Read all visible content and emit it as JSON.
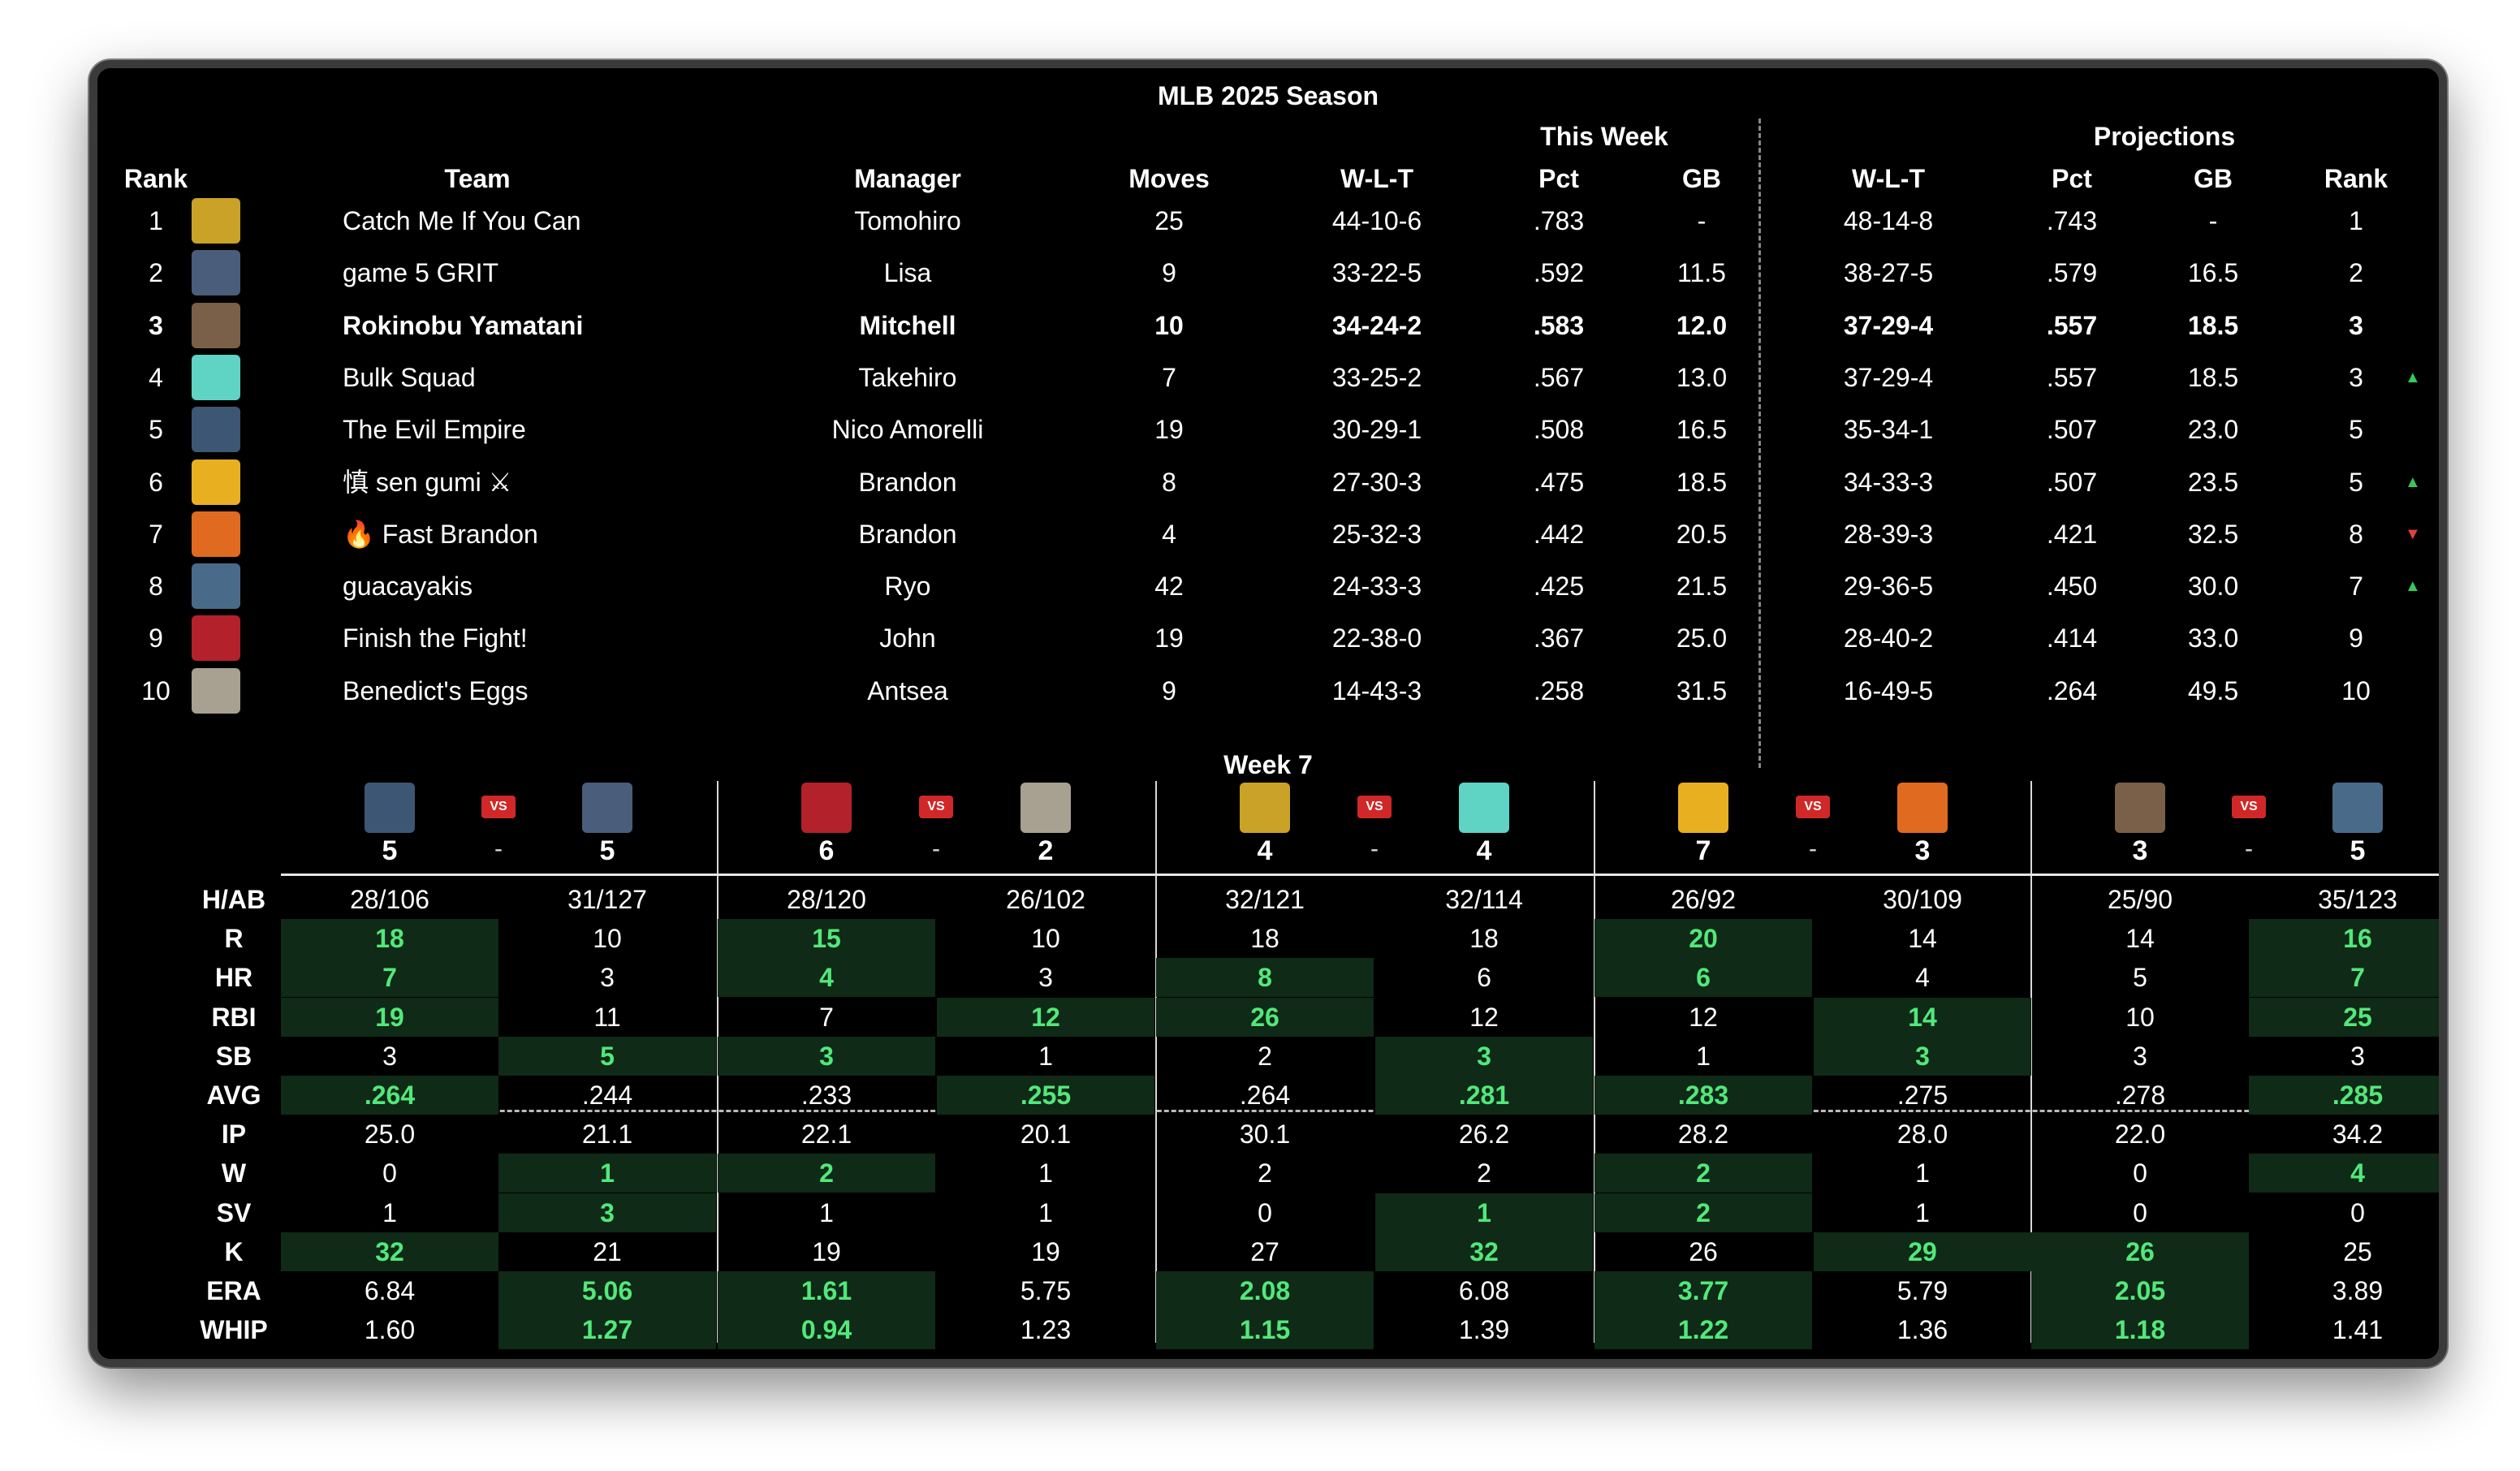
{
  "title": "MLB 2025 Season",
  "groups": {
    "this_week": "This Week",
    "projections": "Projections"
  },
  "headers": {
    "rank": "Rank",
    "team": "Team",
    "manager": "Manager",
    "moves": "Moves",
    "wlt": "W-L-T",
    "pct": "Pct",
    "gb": "GB",
    "proj_wlt": "W-L-T",
    "proj_pct": "Pct",
    "proj_gb": "GB",
    "proj_rank": "Rank"
  },
  "standings": [
    {
      "rank": "1",
      "team": "Catch Me If You Can",
      "manager": "Tomohiro",
      "moves": "25",
      "wlt": "44-10-6",
      "pct": ".783",
      "gb": "-",
      "proj_wlt": "48-14-8",
      "proj_pct": ".743",
      "proj_gb": "-",
      "proj_rank": "1",
      "trend": "",
      "logo_color": "#c9a227",
      "bold": false
    },
    {
      "rank": "2",
      "team": "game 5 GRIT",
      "manager": "Lisa",
      "moves": "9",
      "wlt": "33-22-5",
      "pct": ".592",
      "gb": "11.5",
      "proj_wlt": "38-27-5",
      "proj_pct": ".579",
      "proj_gb": "16.5",
      "proj_rank": "2",
      "trend": "",
      "logo_color": "#4a5d7a",
      "bold": false
    },
    {
      "rank": "3",
      "team": "Rokinobu Yamatani",
      "manager": "Mitchell",
      "moves": "10",
      "wlt": "34-24-2",
      "pct": ".583",
      "gb": "12.0",
      "proj_wlt": "37-29-4",
      "proj_pct": ".557",
      "proj_gb": "18.5",
      "proj_rank": "3",
      "trend": "",
      "logo_color": "#7a6048",
      "bold": true
    },
    {
      "rank": "4",
      "team": "Bulk Squad",
      "manager": "Takehiro",
      "moves": "7",
      "wlt": "33-25-2",
      "pct": ".567",
      "gb": "13.0",
      "proj_wlt": "37-29-4",
      "proj_pct": ".557",
      "proj_gb": "18.5",
      "proj_rank": "3",
      "trend": "▲",
      "logo_color": "#5fd3c4",
      "bold": false
    },
    {
      "rank": "5",
      "team": "The Evil Empire",
      "manager": "Nico Amorelli",
      "moves": "19",
      "wlt": "30-29-1",
      "pct": ".508",
      "gb": "16.5",
      "proj_wlt": "35-34-1",
      "proj_pct": ".507",
      "proj_gb": "23.0",
      "proj_rank": "5",
      "trend": "",
      "logo_color": "#3d5673",
      "bold": false
    },
    {
      "rank": "6",
      "team": "慎 sen gumi ⚔",
      "manager": "Brandon",
      "moves": "8",
      "wlt": "27-30-3",
      "pct": ".475",
      "gb": "18.5",
      "proj_wlt": "34-33-3",
      "proj_pct": ".507",
      "proj_gb": "23.5",
      "proj_rank": "5",
      "trend": "▲",
      "logo_color": "#e8b020",
      "bold": false
    },
    {
      "rank": "7",
      "team": "🔥 Fast Brandon",
      "manager": "Brandon",
      "moves": "4",
      "wlt": "25-32-3",
      "pct": ".442",
      "gb": "20.5",
      "proj_wlt": "28-39-3",
      "proj_pct": ".421",
      "proj_gb": "32.5",
      "proj_rank": "8",
      "trend": "▼",
      "logo_color": "#e06a20",
      "bold": false
    },
    {
      "rank": "8",
      "team": "guacayakis",
      "manager": "Ryo",
      "moves": "42",
      "wlt": "24-33-3",
      "pct": ".425",
      "gb": "21.5",
      "proj_wlt": "29-36-5",
      "proj_pct": ".450",
      "proj_gb": "30.0",
      "proj_rank": "7",
      "trend": "▲",
      "logo_color": "#4a6a8a",
      "bold": false
    },
    {
      "rank": "9",
      "team": "Finish the Fight!",
      "manager": "John",
      "moves": "19",
      "wlt": "22-38-0",
      "pct": ".367",
      "gb": "25.0",
      "proj_wlt": "28-40-2",
      "proj_pct": ".414",
      "proj_gb": "33.0",
      "proj_rank": "9",
      "trend": "",
      "logo_color": "#b3212b",
      "bold": false
    },
    {
      "rank": "10",
      "team": "Benedict's Eggs",
      "manager": "Antsea",
      "moves": "9",
      "wlt": "14-43-3",
      "pct": ".258",
      "gb": "31.5",
      "proj_wlt": "16-49-5",
      "proj_pct": ".264",
      "proj_gb": "49.5",
      "proj_rank": "10",
      "trend": "",
      "logo_color": "#a8a090",
      "bold": false
    }
  ],
  "week": {
    "label": "Week 7",
    "vs_label": "VS",
    "score_sep": "-",
    "stat_labels": [
      "H/AB",
      "R",
      "HR",
      "RBI",
      "SB",
      "AVG",
      "IP",
      "W",
      "SV",
      "K",
      "ERA",
      "WHIP"
    ],
    "matchups": [
      {
        "a": {
          "logo_color": "#3d5673",
          "score": "5",
          "hab": "28/106",
          "stats": [
            "18",
            "7",
            "19",
            "3",
            ".264",
            "25.0",
            "0",
            "1",
            "32",
            "6.84",
            "1.60"
          ]
        },
        "b": {
          "logo_color": "#4a5d7a",
          "score": "5",
          "hab": "31/127",
          "stats": [
            "10",
            "3",
            "11",
            "5",
            ".244",
            "21.1",
            "1",
            "3",
            "21",
            "5.06",
            "1.27"
          ]
        },
        "winners": [
          "a",
          "a",
          "a",
          "b",
          "a",
          "",
          "b",
          "b",
          "a",
          "b",
          "b"
        ]
      },
      {
        "a": {
          "logo_color": "#b3212b",
          "score": "6",
          "hab": "28/120",
          "stats": [
            "15",
            "4",
            "7",
            "3",
            ".233",
            "22.1",
            "2",
            "1",
            "19",
            "1.61",
            "0.94"
          ]
        },
        "b": {
          "logo_color": "#a8a090",
          "score": "2",
          "hab": "26/102",
          "stats": [
            "10",
            "3",
            "12",
            "1",
            ".255",
            "20.1",
            "1",
            "1",
            "19",
            "5.75",
            "1.23"
          ]
        },
        "winners": [
          "a",
          "a",
          "b",
          "a",
          "b",
          "",
          "a",
          "",
          "",
          "a",
          "a"
        ]
      },
      {
        "a": {
          "logo_color": "#c9a227",
          "score": "4",
          "hab": "32/121",
          "stats": [
            "18",
            "8",
            "26",
            "2",
            ".264",
            "30.1",
            "2",
            "0",
            "27",
            "2.08",
            "1.15"
          ]
        },
        "b": {
          "logo_color": "#5fd3c4",
          "score": "4",
          "hab": "32/114",
          "stats": [
            "18",
            "6",
            "12",
            "3",
            ".281",
            "26.2",
            "2",
            "1",
            "32",
            "6.08",
            "1.39"
          ]
        },
        "winners": [
          "",
          "a",
          "a",
          "b",
          "b",
          "",
          "",
          "b",
          "b",
          "a",
          "a"
        ]
      },
      {
        "a": {
          "logo_color": "#e8b020",
          "score": "7",
          "hab": "26/92",
          "stats": [
            "20",
            "6",
            "12",
            "1",
            ".283",
            "28.2",
            "2",
            "2",
            "26",
            "3.77",
            "1.22"
          ]
        },
        "b": {
          "logo_color": "#e06a20",
          "score": "3",
          "hab": "30/109",
          "stats": [
            "14",
            "4",
            "14",
            "3",
            ".275",
            "28.0",
            "1",
            "1",
            "29",
            "5.79",
            "1.36"
          ]
        },
        "winners": [
          "a",
          "a",
          "b",
          "b",
          "a",
          "",
          "a",
          "a",
          "b",
          "a",
          "a"
        ]
      },
      {
        "a": {
          "logo_color": "#7a6048",
          "score": "3",
          "hab": "25/90",
          "stats": [
            "14",
            "5",
            "10",
            "3",
            ".278",
            "22.0",
            "0",
            "0",
            "26",
            "2.05",
            "1.18"
          ]
        },
        "b": {
          "logo_color": "#4a6a8a",
          "score": "5",
          "hab": "35/123",
          "stats": [
            "16",
            "7",
            "25",
            "3",
            ".285",
            "34.2",
            "4",
            "0",
            "25",
            "3.89",
            "1.41"
          ]
        },
        "winners": [
          "b",
          "b",
          "b",
          "",
          "b",
          "",
          "b",
          "",
          "a",
          "a",
          "a"
        ]
      }
    ]
  }
}
